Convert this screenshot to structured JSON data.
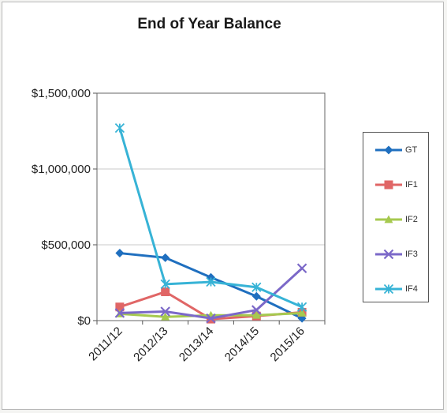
{
  "chart_data": {
    "type": "line",
    "title": "End of Year Balance",
    "xlabel": "",
    "ylabel": "",
    "categories": [
      "2011/12",
      "2012/13",
      "2013/14",
      "2014/15",
      "2015/16"
    ],
    "y_ticks": [
      "$0",
      "$500,000",
      "$1,000,000",
      "$1,500,000"
    ],
    "ylim": [
      0,
      1500000
    ],
    "grid": true,
    "legend": "right",
    "series": [
      {
        "name": "GT",
        "color": "#1f6fbf",
        "marker": "diamond",
        "values": [
          445000,
          415000,
          285000,
          160000,
          15000
        ]
      },
      {
        "name": "IF1",
        "color": "#e06666",
        "marker": "square",
        "values": [
          90000,
          190000,
          10000,
          30000,
          55000
        ]
      },
      {
        "name": "IF2",
        "color": "#a6c94f",
        "marker": "triangle",
        "values": [
          45000,
          25000,
          35000,
          35000,
          50000
        ]
      },
      {
        "name": "IF3",
        "color": "#7b68c8",
        "marker": "x",
        "values": [
          50000,
          60000,
          15000,
          70000,
          345000
        ]
      },
      {
        "name": "IF4",
        "color": "#37b3d6",
        "marker": "star",
        "values": [
          1270000,
          240000,
          255000,
          220000,
          90000
        ]
      }
    ]
  }
}
